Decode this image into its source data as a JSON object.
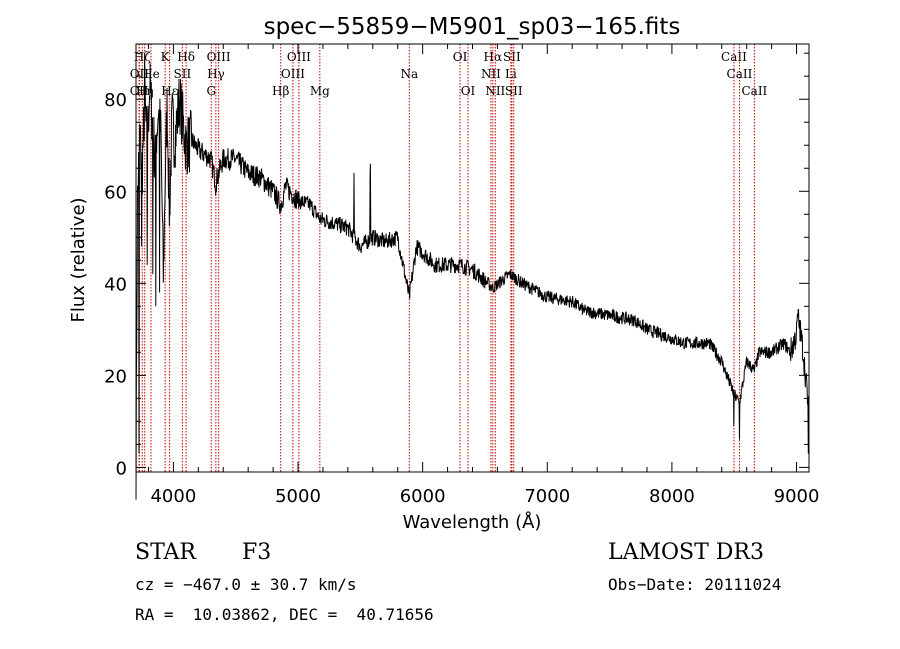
{
  "chart_data": {
    "type": "line",
    "title": "spec−55859−M5901_sp03−165.fits",
    "xlabel": "Wavelength (Å)",
    "ylabel": "Flux (relative)",
    "xlim": [
      3700,
      9100
    ],
    "ylim": [
      -1,
      92
    ],
    "x_ticks": [
      4000,
      5000,
      6000,
      7000,
      8000,
      9000
    ],
    "y_ticks": [
      0,
      20,
      40,
      60,
      80
    ],
    "series": [
      {
        "name": "flux",
        "anchors": [
          [
            3700,
            0
          ],
          [
            3712,
            58
          ],
          [
            3730,
            72
          ],
          [
            3750,
            65
          ],
          [
            3770,
            79
          ],
          [
            3790,
            70
          ],
          [
            3810,
            83
          ],
          [
            3830,
            76
          ],
          [
            3850,
            68
          ],
          [
            3880,
            78
          ],
          [
            3900,
            72
          ],
          [
            3920,
            40
          ],
          [
            3933,
            62
          ],
          [
            3950,
            79
          ],
          [
            3968,
            55
          ],
          [
            3990,
            76
          ],
          [
            4010,
            71
          ],
          [
            4050,
            80
          ],
          [
            4101,
            70
          ],
          [
            4150,
            71
          ],
          [
            4200,
            69
          ],
          [
            4300,
            67
          ],
          [
            4340,
            62
          ],
          [
            4400,
            67
          ],
          [
            4500,
            67
          ],
          [
            4600,
            64
          ],
          [
            4700,
            63
          ],
          [
            4800,
            60
          ],
          [
            4861,
            57
          ],
          [
            4900,
            61
          ],
          [
            5000,
            58
          ],
          [
            5100,
            57
          ],
          [
            5175,
            54
          ],
          [
            5300,
            53
          ],
          [
            5400,
            52
          ],
          [
            5500,
            48
          ],
          [
            5600,
            50
          ],
          [
            5700,
            49
          ],
          [
            5800,
            50
          ],
          [
            5893,
            37
          ],
          [
            5950,
            48
          ],
          [
            6100,
            44
          ],
          [
            6300,
            44
          ],
          [
            6400,
            43
          ],
          [
            6563,
            39
          ],
          [
            6700,
            42
          ],
          [
            6800,
            40
          ],
          [
            7000,
            37
          ],
          [
            7200,
            36
          ],
          [
            7300,
            34
          ],
          [
            7500,
            33
          ],
          [
            7700,
            32
          ],
          [
            7800,
            30
          ],
          [
            7900,
            29
          ],
          [
            8000,
            28
          ],
          [
            8100,
            27
          ],
          [
            8200,
            27
          ],
          [
            8300,
            27
          ],
          [
            8400,
            23
          ],
          [
            8440,
            20
          ],
          [
            8498,
            16
          ],
          [
            8542,
            14
          ],
          [
            8600,
            23
          ],
          [
            8662,
            21
          ],
          [
            8700,
            25
          ],
          [
            8800,
            25
          ],
          [
            8900,
            27
          ],
          [
            8950,
            25
          ],
          [
            9000,
            29
          ],
          [
            9010,
            33
          ],
          [
            9050,
            26
          ],
          [
            9100,
            12
          ]
        ],
        "spikes": [
          [
            3725,
            3
          ],
          [
            3745,
            48
          ],
          [
            3768,
            90
          ],
          [
            3790,
            44
          ],
          [
            3835,
            42
          ],
          [
            3860,
            35
          ],
          [
            3889,
            38
          ],
          [
            4340,
            59
          ],
          [
            5450,
            64
          ],
          [
            5580,
            66
          ],
          [
            5577,
            64
          ],
          [
            6300,
            45
          ],
          [
            8498,
            9
          ],
          [
            8542,
            6
          ],
          [
            9095,
            3
          ]
        ]
      }
    ],
    "lines": [
      {
        "label": "Hζ",
        "wavelength": 3750,
        "row": 1
      },
      {
        "label": "OII",
        "wavelength": 3727,
        "row": 2
      },
      {
        "label": "CII",
        "wavelength": 3725,
        "row": 3
      },
      {
        "label": "Hη",
        "wavelength": 3770,
        "row": 3
      },
      {
        "label": "He",
        "wavelength": 3820,
        "row": 2
      },
      {
        "label": "K",
        "wavelength": 3934,
        "row": 1
      },
      {
        "label": "Hε",
        "wavelength": 3970,
        "row": 3
      },
      {
        "label": "SII",
        "wavelength": 4072,
        "row": 2
      },
      {
        "label": "Hδ",
        "wavelength": 4102,
        "row": 1
      },
      {
        "label": "OIII",
        "wavelength": 4363,
        "row": 1
      },
      {
        "label": "Hγ",
        "wavelength": 4341,
        "row": 2
      },
      {
        "label": "G",
        "wavelength": 4304,
        "row": 3
      },
      {
        "label": "OIII",
        "wavelength": 5007,
        "row": 1
      },
      {
        "label": "OIII",
        "wavelength": 4959,
        "row": 2
      },
      {
        "label": "Hβ",
        "wavelength": 4861,
        "row": 3
      },
      {
        "label": "Mg",
        "wavelength": 5175,
        "row": 3
      },
      {
        "label": "Na",
        "wavelength": 5893,
        "row": 2
      },
      {
        "label": "OI",
        "wavelength": 6300,
        "row": 1
      },
      {
        "label": "OI",
        "wavelength": 6364,
        "row": 3
      },
      {
        "label": "Hα",
        "wavelength": 6563,
        "row": 1
      },
      {
        "label": "SII",
        "wavelength": 6716,
        "row": 1
      },
      {
        "label": "NII",
        "wavelength": 6548,
        "row": 2
      },
      {
        "label": "Li",
        "wavelength": 6708,
        "row": 2
      },
      {
        "label": "NII",
        "wavelength": 6583,
        "row": 3
      },
      {
        "label": "SII",
        "wavelength": 6731,
        "row": 3
      },
      {
        "label": "CaII",
        "wavelength": 8498,
        "row": 1
      },
      {
        "label": "CaII",
        "wavelength": 8542,
        "row": 2
      },
      {
        "label": "CaII",
        "wavelength": 8662,
        "row": 3
      }
    ]
  },
  "footer": {
    "class": "STAR",
    "subclass": "F3",
    "survey": "LAMOST DR3",
    "cz": "cz = −467.0 ± 30.7 km/s",
    "obs_date": "Obs−Date: 20111024",
    "coords": "RA =  10.03862, DEC =  40.71656"
  }
}
